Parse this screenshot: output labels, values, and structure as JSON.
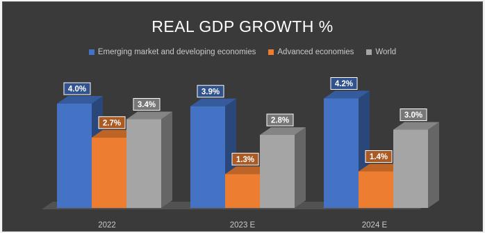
{
  "chart_data": {
    "type": "bar",
    "title": "REAL GDP GROWTH %",
    "categories": [
      "2022",
      "2023 E",
      "2024 E"
    ],
    "series": [
      {
        "name": "Emerging market and developing economies",
        "values": [
          4.0,
          3.9,
          4.2
        ],
        "labels": [
          "4.0%",
          "3.9%",
          "4.2%"
        ],
        "color": "#4472c4"
      },
      {
        "name": "Advanced economies",
        "values": [
          2.7,
          1.3,
          1.4
        ],
        "labels": [
          "2.7%",
          "1.3%",
          "1.4%"
        ],
        "color": "#ed7d31"
      },
      {
        "name": "World",
        "values": [
          3.4,
          2.8,
          3.0
        ],
        "labels": [
          "3.4%",
          "2.8%",
          "3.0%"
        ],
        "color": "#a5a5a5"
      }
    ],
    "legend_position": "top",
    "grid": false,
    "style": "3d-column"
  }
}
